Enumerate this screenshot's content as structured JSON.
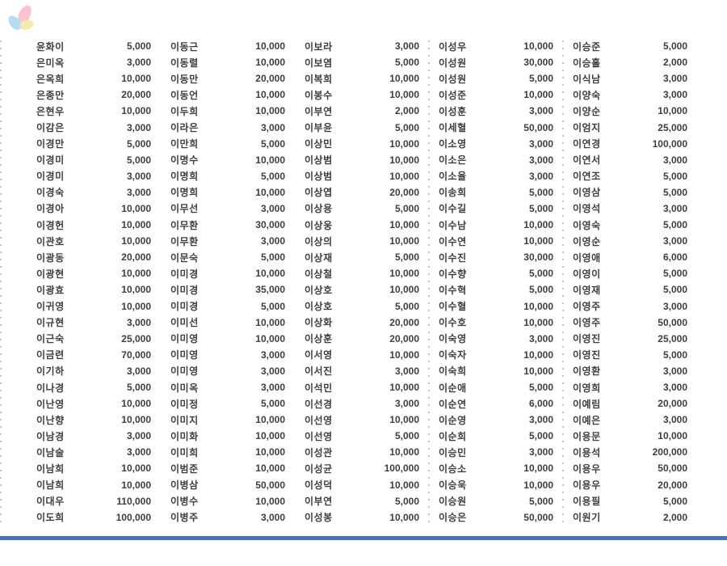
{
  "theme": {
    "bg": "#ffffff",
    "text": "#3e3e3e",
    "dot": "#c4c4c4",
    "bar": "#4472c4",
    "petal-pink": "#f8bcc8",
    "petal-blue": "#abd7f3",
    "petal-yellow": "#f6e6a4"
  },
  "logo": {
    "icon": "flower-petals-logo",
    "petals": [
      "pink",
      "blue",
      "yellow"
    ]
  },
  "table": {
    "groups": [
      {
        "rows": [
          {
            "name": "윤화이",
            "amount": "5,000"
          },
          {
            "name": "은미옥",
            "amount": "3,000"
          },
          {
            "name": "은옥희",
            "amount": "10,000"
          },
          {
            "name": "은종만",
            "amount": "20,000"
          },
          {
            "name": "은현우",
            "amount": "10,000"
          },
          {
            "name": "이감은",
            "amount": "3,000"
          },
          {
            "name": "이경만",
            "amount": "5,000"
          },
          {
            "name": "이경미",
            "amount": "5,000"
          },
          {
            "name": "이경미",
            "amount": "3,000"
          },
          {
            "name": "이경숙",
            "amount": "3,000"
          },
          {
            "name": "이경아",
            "amount": "10,000"
          },
          {
            "name": "이경헌",
            "amount": "10,000"
          },
          {
            "name": "이관호",
            "amount": "10,000"
          },
          {
            "name": "이광동",
            "amount": "20,000"
          },
          {
            "name": "이광현",
            "amount": "10,000"
          },
          {
            "name": "이광효",
            "amount": "10,000"
          },
          {
            "name": "이귀영",
            "amount": "10,000"
          },
          {
            "name": "이규현",
            "amount": "3,000"
          },
          {
            "name": "이근숙",
            "amount": "25,000"
          },
          {
            "name": "이금련",
            "amount": "70,000"
          },
          {
            "name": "이기하",
            "amount": "3,000"
          },
          {
            "name": "이나경",
            "amount": "5,000"
          },
          {
            "name": "이난영",
            "amount": "10,000"
          },
          {
            "name": "이난향",
            "amount": "10,000"
          },
          {
            "name": "이남경",
            "amount": "3,000"
          },
          {
            "name": "이남술",
            "amount": "3,000"
          },
          {
            "name": "이남희",
            "amount": "10,000"
          },
          {
            "name": "이남희",
            "amount": "10,000"
          },
          {
            "name": "이대우",
            "amount": "110,000"
          },
          {
            "name": "이도희",
            "amount": "100,000"
          }
        ]
      },
      {
        "rows": [
          {
            "name": "이동근",
            "amount": "10,000"
          },
          {
            "name": "이동렬",
            "amount": "10,000"
          },
          {
            "name": "이동만",
            "amount": "20,000"
          },
          {
            "name": "이동언",
            "amount": "10,000"
          },
          {
            "name": "이두희",
            "amount": "10,000"
          },
          {
            "name": "이라은",
            "amount": "3,000"
          },
          {
            "name": "이만희",
            "amount": "5,000"
          },
          {
            "name": "이명수",
            "amount": "10,000"
          },
          {
            "name": "이명희",
            "amount": "5,000"
          },
          {
            "name": "이명희",
            "amount": "10,000"
          },
          {
            "name": "이무선",
            "amount": "3,000"
          },
          {
            "name": "이무환",
            "amount": "30,000"
          },
          {
            "name": "이무환",
            "amount": "3,000"
          },
          {
            "name": "이문숙",
            "amount": "5,000"
          },
          {
            "name": "이미경",
            "amount": "10,000"
          },
          {
            "name": "이미경",
            "amount": "35,000"
          },
          {
            "name": "이미경",
            "amount": "5,000"
          },
          {
            "name": "이미선",
            "amount": "10,000"
          },
          {
            "name": "이미영",
            "amount": "10,000"
          },
          {
            "name": "이미영",
            "amount": "3,000"
          },
          {
            "name": "이미영",
            "amount": "3,000"
          },
          {
            "name": "이미옥",
            "amount": "3,000"
          },
          {
            "name": "이미정",
            "amount": "5,000"
          },
          {
            "name": "이미지",
            "amount": "10,000"
          },
          {
            "name": "이미화",
            "amount": "10,000"
          },
          {
            "name": "이미희",
            "amount": "10,000"
          },
          {
            "name": "이범준",
            "amount": "10,000"
          },
          {
            "name": "이병삼",
            "amount": "50,000"
          },
          {
            "name": "이병수",
            "amount": "10,000"
          },
          {
            "name": "이병주",
            "amount": "3,000"
          }
        ]
      },
      {
        "rows": [
          {
            "name": "이보라",
            "amount": "3,000"
          },
          {
            "name": "이보염",
            "amount": "5,000"
          },
          {
            "name": "이복희",
            "amount": "10,000"
          },
          {
            "name": "이봉수",
            "amount": "10,000"
          },
          {
            "name": "이부연",
            "amount": "2,000"
          },
          {
            "name": "이부윤",
            "amount": "5,000"
          },
          {
            "name": "이상민",
            "amount": "10,000"
          },
          {
            "name": "이상범",
            "amount": "10,000"
          },
          {
            "name": "이상범",
            "amount": "10,000"
          },
          {
            "name": "이상엽",
            "amount": "20,000"
          },
          {
            "name": "이상용",
            "amount": "5,000"
          },
          {
            "name": "이상웅",
            "amount": "10,000"
          },
          {
            "name": "이상의",
            "amount": "10,000"
          },
          {
            "name": "이상재",
            "amount": "5,000"
          },
          {
            "name": "이상철",
            "amount": "10,000"
          },
          {
            "name": "이상호",
            "amount": "10,000"
          },
          {
            "name": "이상호",
            "amount": "5,000"
          },
          {
            "name": "이상화",
            "amount": "20,000"
          },
          {
            "name": "이상훈",
            "amount": "20,000"
          },
          {
            "name": "이서영",
            "amount": "10,000"
          },
          {
            "name": "이서진",
            "amount": "3,000"
          },
          {
            "name": "이석민",
            "amount": "10,000"
          },
          {
            "name": "이선경",
            "amount": "3,000"
          },
          {
            "name": "이선영",
            "amount": "10,000"
          },
          {
            "name": "이선영",
            "amount": "5,000"
          },
          {
            "name": "이성관",
            "amount": "10,000"
          },
          {
            "name": "이성균",
            "amount": "100,000"
          },
          {
            "name": "이성덕",
            "amount": "10,000"
          },
          {
            "name": "이부연",
            "amount": "5,000"
          },
          {
            "name": "이성봉",
            "amount": "10,000"
          }
        ]
      },
      {
        "rows": [
          {
            "name": "이성우",
            "amount": "10,000"
          },
          {
            "name": "이성원",
            "amount": "30,000"
          },
          {
            "name": "이성원",
            "amount": "5,000"
          },
          {
            "name": "이성준",
            "amount": "10,000"
          },
          {
            "name": "이성훈",
            "amount": "3,000"
          },
          {
            "name": "이세혈",
            "amount": "50,000"
          },
          {
            "name": "이소영",
            "amount": "3,000"
          },
          {
            "name": "이소은",
            "amount": "3,000"
          },
          {
            "name": "이소율",
            "amount": "3,000"
          },
          {
            "name": "이송희",
            "amount": "5,000"
          },
          {
            "name": "이수길",
            "amount": "5,000"
          },
          {
            "name": "이수남",
            "amount": "10,000"
          },
          {
            "name": "이수연",
            "amount": "10,000"
          },
          {
            "name": "이수진",
            "amount": "30,000"
          },
          {
            "name": "이수향",
            "amount": "5,000"
          },
          {
            "name": "이수혁",
            "amount": "5,000"
          },
          {
            "name": "이수혈",
            "amount": "10,000"
          },
          {
            "name": "이수호",
            "amount": "10,000"
          },
          {
            "name": "이숙영",
            "amount": "3,000"
          },
          {
            "name": "이숙자",
            "amount": "10,000"
          },
          {
            "name": "이숙희",
            "amount": "10,000"
          },
          {
            "name": "이순애",
            "amount": "5,000"
          },
          {
            "name": "이순연",
            "amount": "6,000"
          },
          {
            "name": "이순영",
            "amount": "3,000"
          },
          {
            "name": "이순희",
            "amount": "5,000"
          },
          {
            "name": "이승민",
            "amount": "3,000"
          },
          {
            "name": "이승소",
            "amount": "10,000"
          },
          {
            "name": "이승욱",
            "amount": "10,000"
          },
          {
            "name": "이승원",
            "amount": "5,000"
          },
          {
            "name": "이승은",
            "amount": "50,000"
          }
        ]
      },
      {
        "rows": [
          {
            "name": "이승준",
            "amount": "5,000"
          },
          {
            "name": "이승흘",
            "amount": "2,000"
          },
          {
            "name": "이식남",
            "amount": "3,000"
          },
          {
            "name": "이양숙",
            "amount": "3,000"
          },
          {
            "name": "이양순",
            "amount": "10,000"
          },
          {
            "name": "이엄지",
            "amount": "25,000"
          },
          {
            "name": "이연경",
            "amount": "100,000"
          },
          {
            "name": "이연서",
            "amount": "3,000"
          },
          {
            "name": "이연조",
            "amount": "5,000"
          },
          {
            "name": "이영삼",
            "amount": "5,000"
          },
          {
            "name": "이영석",
            "amount": "3,000"
          },
          {
            "name": "이영숙",
            "amount": "5,000"
          },
          {
            "name": "이영순",
            "amount": "3,000"
          },
          {
            "name": "이영애",
            "amount": "6,000"
          },
          {
            "name": "이영이",
            "amount": "5,000"
          },
          {
            "name": "이영재",
            "amount": "5,000"
          },
          {
            "name": "이영주",
            "amount": "3,000"
          },
          {
            "name": "이영주",
            "amount": "50,000"
          },
          {
            "name": "이영진",
            "amount": "25,000"
          },
          {
            "name": "이영진",
            "amount": "5,000"
          },
          {
            "name": "이영환",
            "amount": "3,000"
          },
          {
            "name": "이영희",
            "amount": "3,000"
          },
          {
            "name": "이예림",
            "amount": "20,000"
          },
          {
            "name": "이예은",
            "amount": "3,000"
          },
          {
            "name": "이용문",
            "amount": "10,000"
          },
          {
            "name": "이용석",
            "amount": "200,000"
          },
          {
            "name": "이용우",
            "amount": "50,000"
          },
          {
            "name": "이용우",
            "amount": "20,000"
          },
          {
            "name": "이용필",
            "amount": "5,000"
          },
          {
            "name": "이원기",
            "amount": "2,000"
          }
        ]
      }
    ]
  }
}
